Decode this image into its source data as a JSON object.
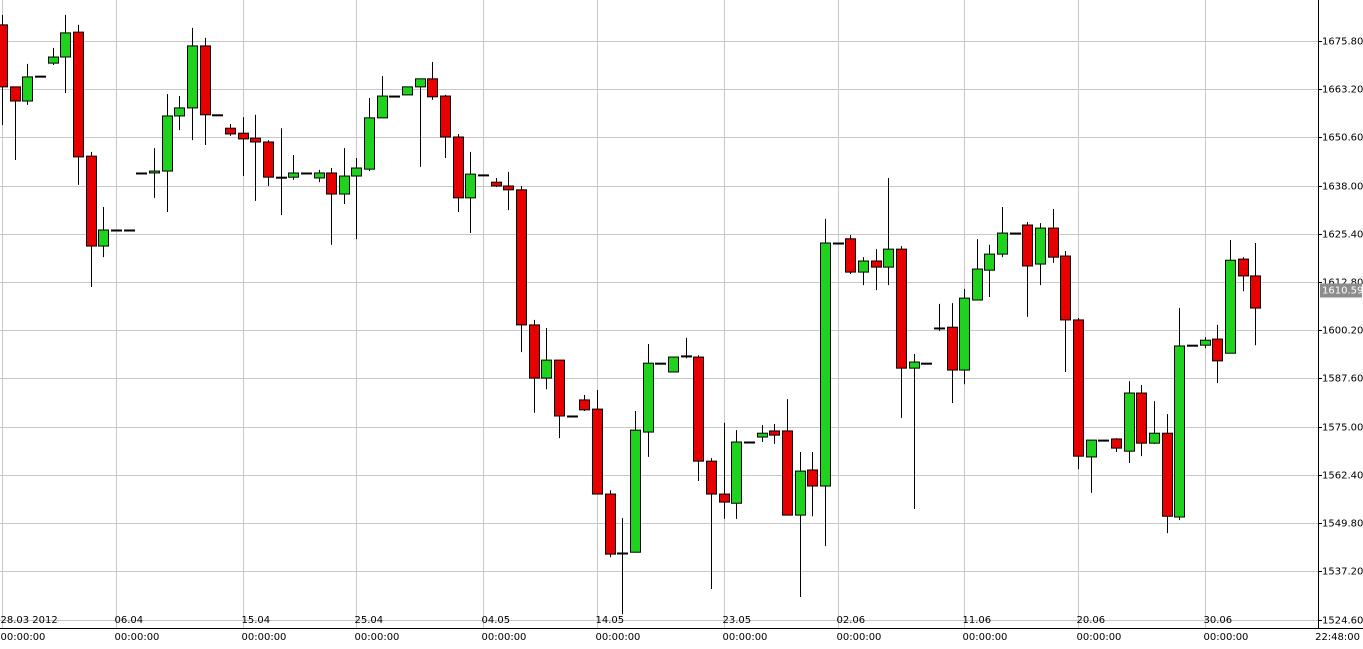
{
  "chart_data": {
    "type": "candlestick",
    "categories": [
      "28.03 2012",
      null,
      null,
      null,
      null,
      null,
      null,
      null,
      null,
      "06.04",
      null,
      null,
      null,
      null,
      null,
      null,
      null,
      null,
      null,
      "15.04",
      null,
      null,
      null,
      null,
      null,
      null,
      null,
      null,
      "25.04",
      null,
      null,
      null,
      null,
      null,
      null,
      null,
      null,
      null,
      "04.05",
      null,
      null,
      null,
      null,
      null,
      null,
      null,
      null,
      "14.05",
      null,
      null,
      null,
      null,
      null,
      null,
      null,
      null,
      null,
      "23.05",
      null,
      null,
      null,
      null,
      null,
      null,
      null,
      null,
      "02.06",
      null,
      null,
      null,
      null,
      null,
      null,
      null,
      null,
      null,
      "11.06",
      null,
      null,
      null,
      null,
      null,
      null,
      null,
      null,
      "20.06",
      null,
      null,
      null,
      null,
      null,
      null,
      null,
      null,
      null,
      "30.06",
      null,
      null,
      null,
      null
    ],
    "time_labels": [
      "00:00:00",
      null,
      null,
      null,
      null,
      null,
      null,
      null,
      null,
      "00:00:00",
      null,
      null,
      null,
      null,
      null,
      null,
      null,
      null,
      null,
      "00:00:00",
      null,
      null,
      null,
      null,
      null,
      null,
      null,
      null,
      "00:00:00",
      null,
      null,
      null,
      null,
      null,
      null,
      null,
      null,
      null,
      "00:00:00",
      null,
      null,
      null,
      null,
      null,
      null,
      null,
      null,
      "00:00:00",
      null,
      null,
      null,
      null,
      null,
      null,
      null,
      null,
      null,
      "00:00:00",
      null,
      null,
      null,
      null,
      null,
      null,
      null,
      null,
      "00:00:00",
      null,
      null,
      null,
      null,
      null,
      null,
      null,
      null,
      null,
      "00:00:00",
      null,
      null,
      null,
      null,
      null,
      null,
      null,
      null,
      "00:00:00",
      null,
      null,
      null,
      null,
      null,
      null,
      null,
      null,
      null,
      "00:00:00",
      null,
      null,
      null,
      null
    ],
    "last_time_label": "22:48:00",
    "open": [
      1680.0,
      1663.8,
      1660.1,
      1666.6,
      1670.0,
      1671.6,
      1678.1,
      1645.7,
      1622.2,
      1626.4,
      1626.4,
      1641.3,
      1641.3,
      1641.8,
      1656.2,
      1658.3,
      1674.5,
      1656.5,
      1653.0,
      1651.7,
      1650.4,
      1649.4,
      1640.2,
      1640.2,
      1641.3,
      1640.0,
      1641.3,
      1635.8,
      1640.5,
      1642.3,
      1655.7,
      1661.4,
      1661.7,
      1663.8,
      1665.9,
      1661.4,
      1650.7,
      1634.8,
      1640.8,
      1638.9,
      1637.9,
      1636.9,
      1601.6,
      1587.7,
      1592.4,
      1577.8,
      1582.0,
      1579.6,
      1557.4,
      1542.0,
      1542.2,
      1573.6,
      1591.6,
      1589.3,
      1593.5,
      1593.2,
      1566.0,
      1557.4,
      1555.0,
      1571.0,
      1572.3,
      1573.9,
      1573.9,
      1551.9,
      1563.7,
      1559.5,
      1623.0,
      1624.1,
      1615.4,
      1618.3,
      1616.7,
      1621.4,
      1590.3,
      1591.6,
      1600.8,
      1601.0,
      1589.8,
      1608.1,
      1615.9,
      1620.1,
      1625.6,
      1627.7,
      1617.5,
      1626.9,
      1619.6,
      1602.9,
      1567.1,
      1571.5,
      1571.8,
      1568.6,
      1583.8,
      1570.7,
      1573.3,
      1551.4,
      1596.3,
      1596.3,
      1597.9,
      1594.2,
      1618.8,
      1614.4
    ],
    "high": [
      1682.6,
      1663.8,
      1669.8,
      1666.6,
      1674.0,
      1682.6,
      1680.0,
      1646.8,
      1632.4,
      1626.4,
      1626.4,
      1641.3,
      1647.8,
      1661.9,
      1661.4,
      1679.2,
      1676.6,
      1656.5,
      1654.1,
      1655.9,
      1656.5,
      1649.9,
      1653.0,
      1646.0,
      1641.3,
      1642.1,
      1642.6,
      1647.8,
      1645.2,
      1660.9,
      1666.6,
      1661.4,
      1663.8,
      1665.9,
      1670.3,
      1661.7,
      1651.5,
      1646.8,
      1640.8,
      1640.0,
      1641.6,
      1637.9,
      1602.9,
      1600.8,
      1592.4,
      1577.8,
      1583.3,
      1584.6,
      1558.4,
      1551.1,
      1579.1,
      1596.6,
      1591.6,
      1593.2,
      1598.2,
      1593.7,
      1566.8,
      1576.0,
      1574.1,
      1571.0,
      1575.4,
      1575.7,
      1582.2,
      1568.4,
      1568.4,
      1629.3,
      1623.0,
      1625.1,
      1619.3,
      1621.4,
      1640.0,
      1622.2,
      1594.0,
      1591.6,
      1607.1,
      1607.3,
      1611.0,
      1624.0,
      1622.5,
      1632.4,
      1625.6,
      1628.5,
      1628.2,
      1631.9,
      1620.9,
      1603.4,
      1571.5,
      1571.5,
      1572.0,
      1586.9,
      1585.9,
      1581.7,
      1578.3,
      1606.0,
      1596.3,
      1598.4,
      1601.6,
      1623.8,
      1619.3,
      1623.0
    ],
    "low": [
      1653.8,
      1644.7,
      1659.1,
      1666.6,
      1669.5,
      1662.2,
      1638.2,
      1611.5,
      1619.3,
      1626.4,
      1626.4,
      1641.3,
      1634.8,
      1631.1,
      1652.5,
      1649.9,
      1648.6,
      1656.5,
      1651.0,
      1640.5,
      1634.0,
      1637.9,
      1630.3,
      1639.5,
      1641.3,
      1638.9,
      1622.5,
      1633.2,
      1624.0,
      1641.8,
      1655.7,
      1661.4,
      1661.7,
      1642.9,
      1660.4,
      1645.2,
      1631.1,
      1625.6,
      1640.8,
      1637.6,
      1631.6,
      1594.5,
      1578.6,
      1584.8,
      1572.0,
      1577.8,
      1579.1,
      1557.4,
      1540.9,
      1526.0,
      1542.2,
      1567.1,
      1591.6,
      1589.3,
      1592.9,
      1560.8,
      1532.6,
      1550.9,
      1550.9,
      1571.0,
      1571.0,
      1570.5,
      1551.9,
      1530.5,
      1551.6,
      1543.8,
      1623.0,
      1614.9,
      1612.0,
      1610.7,
      1612.0,
      1577.3,
      1553.5,
      1591.6,
      1600.0,
      1581.2,
      1586.1,
      1608.1,
      1608.9,
      1619.3,
      1625.6,
      1603.7,
      1612.0,
      1617.8,
      1589.3,
      1563.9,
      1557.7,
      1571.5,
      1568.4,
      1565.5,
      1567.3,
      1570.5,
      1547.2,
      1550.6,
      1596.3,
      1595.5,
      1586.4,
      1594.2,
      1610.4,
      1596.3
    ],
    "close": [
      1663.8,
      1660.1,
      1666.4,
      1666.6,
      1671.6,
      1677.9,
      1645.5,
      1622.2,
      1626.4,
      1626.4,
      1626.4,
      1641.3,
      1641.8,
      1656.2,
      1658.3,
      1674.5,
      1656.5,
      1656.5,
      1651.5,
      1650.2,
      1649.4,
      1640.2,
      1640.2,
      1641.3,
      1641.3,
      1641.3,
      1635.8,
      1640.5,
      1642.6,
      1655.7,
      1661.4,
      1661.4,
      1663.8,
      1665.9,
      1661.2,
      1650.7,
      1634.8,
      1641.0,
      1640.8,
      1637.9,
      1636.9,
      1601.6,
      1587.7,
      1592.4,
      1577.8,
      1577.8,
      1579.4,
      1557.4,
      1541.7,
      1542.0,
      1574.1,
      1591.6,
      1591.6,
      1593.2,
      1593.5,
      1566.0,
      1557.4,
      1555.3,
      1571.0,
      1571.0,
      1573.3,
      1572.8,
      1551.9,
      1563.4,
      1559.5,
      1623.0,
      1623.0,
      1615.4,
      1618.3,
      1616.7,
      1621.4,
      1590.3,
      1591.9,
      1591.6,
      1600.8,
      1589.8,
      1608.6,
      1616.2,
      1620.1,
      1625.6,
      1625.6,
      1617.0,
      1626.9,
      1619.3,
      1602.9,
      1567.3,
      1571.5,
      1571.5,
      1569.4,
      1583.8,
      1570.7,
      1573.3,
      1551.6,
      1596.1,
      1596.3,
      1597.6,
      1592.2,
      1618.5,
      1614.4,
      1606.0
    ],
    "up_color": "#1ed21e",
    "down_color": "#e60000",
    "ylim": [
      1522.4,
      1686.5
    ],
    "yticks": [
      {
        "value": 1524.6,
        "label": "1524.60"
      },
      {
        "value": 1537.2,
        "label": "1537.20"
      },
      {
        "value": 1549.8,
        "label": "1549.80"
      },
      {
        "value": 1562.4,
        "label": "1562.40"
      },
      {
        "value": 1575.0,
        "label": "1575.00"
      },
      {
        "value": 1587.6,
        "label": "1587.60"
      },
      {
        "value": 1600.2,
        "label": "1600.20"
      },
      {
        "value": 1612.8,
        "label": "1612.80"
      },
      {
        "value": 1625.4,
        "label": "1625.40"
      },
      {
        "value": 1638.0,
        "label": "1638.00"
      },
      {
        "value": 1650.6,
        "label": "1650.60"
      },
      {
        "value": 1663.2,
        "label": "1663.20"
      },
      {
        "value": 1675.8,
        "label": "1675.80"
      }
    ],
    "current_price": 1610.59,
    "grid": true
  }
}
